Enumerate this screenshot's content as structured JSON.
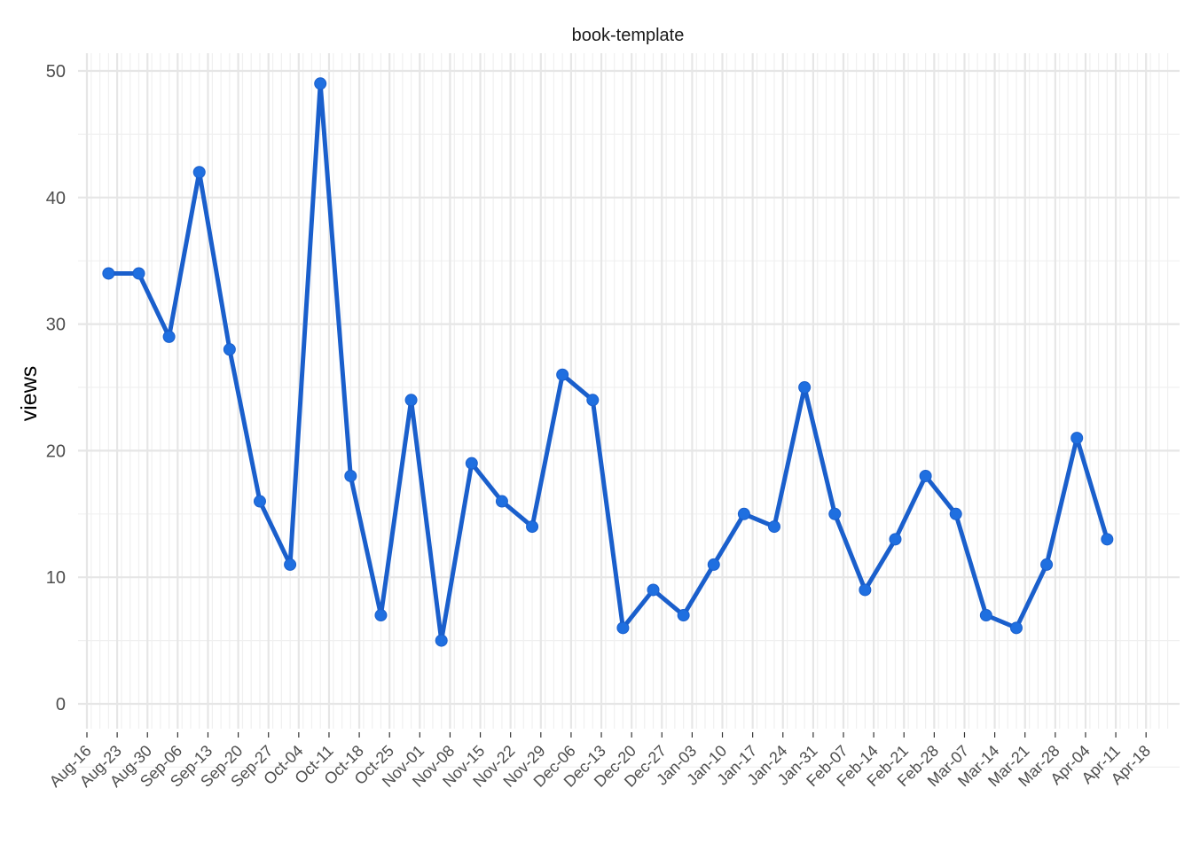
{
  "chart_data": {
    "type": "line",
    "title": "book-template",
    "xlabel": "",
    "ylabel": "views",
    "ylim": [
      0,
      50
    ],
    "yticks": [
      0,
      10,
      20,
      30,
      40,
      50
    ],
    "xlim": [
      "2020-08-16",
      "2021-04-18"
    ],
    "xtick_labels": [
      "Aug-16",
      "Aug-23",
      "Aug-30",
      "Sep-06",
      "Sep-13",
      "Sep-20",
      "Sep-27",
      "Oct-04",
      "Oct-11",
      "Oct-18",
      "Oct-25",
      "Nov-01",
      "Nov-08",
      "Nov-15",
      "Nov-22",
      "Nov-29",
      "Dec-06",
      "Dec-13",
      "Dec-20",
      "Dec-27",
      "Jan-03",
      "Jan-10",
      "Jan-17",
      "Jan-24",
      "Jan-31",
      "Feb-07",
      "Feb-14",
      "Feb-21",
      "Feb-28",
      "Mar-07",
      "Mar-14",
      "Mar-21",
      "Mar-28",
      "Apr-04",
      "Apr-11",
      "Apr-18"
    ],
    "grid": true,
    "legend": false,
    "series": [
      {
        "color": "#1a5fcc",
        "x": [
          "Aug-21",
          "Aug-28",
          "Sep-04",
          "Sep-11",
          "Sep-18",
          "Sep-25",
          "Oct-02",
          "Oct-09",
          "Oct-16",
          "Oct-23",
          "Oct-30",
          "Nov-06",
          "Nov-13",
          "Nov-20",
          "Nov-27",
          "Dec-04",
          "Dec-11",
          "Dec-18",
          "Dec-25",
          "Jan-01",
          "Jan-08",
          "Jan-15",
          "Jan-22",
          "Jan-29",
          "Feb-05",
          "Feb-12",
          "Feb-19",
          "Feb-26",
          "Mar-05",
          "Mar-12",
          "Mar-19",
          "Mar-26",
          "Apr-02",
          "Apr-09"
        ],
        "values": [
          34,
          34,
          29,
          42,
          28,
          16,
          11,
          49,
          18,
          7,
          24,
          5,
          19,
          16,
          14,
          26,
          24,
          6,
          9,
          7,
          11,
          15,
          14,
          25,
          15,
          9,
          13,
          18,
          15,
          7,
          6,
          11,
          21,
          13
        ]
      }
    ]
  }
}
